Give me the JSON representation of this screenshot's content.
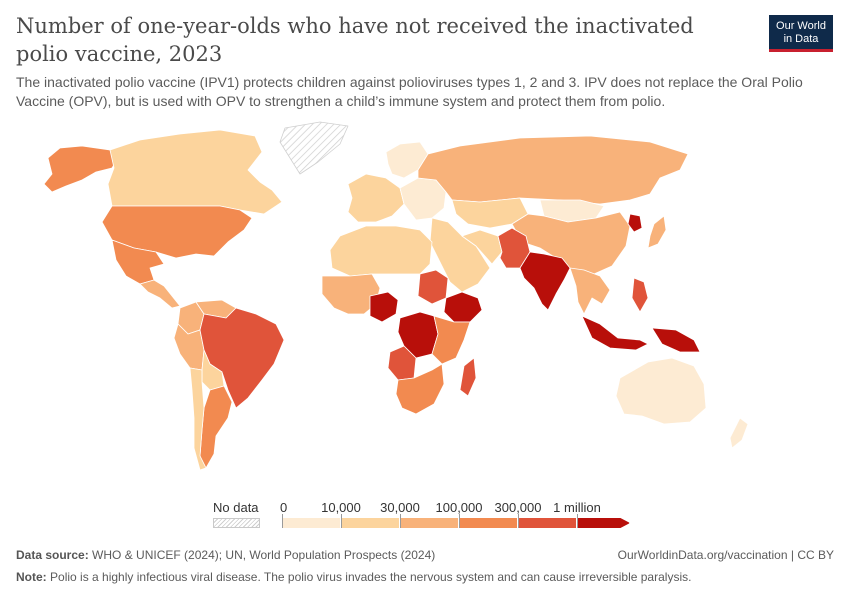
{
  "header": {
    "title": "Number of one-year-olds who have not received the inactivated polio vaccine, 2023",
    "subtitle": "The inactivated polio vaccine (IPV1) protects children against polioviruses types 1, 2 and 3. IPV does not replace the Oral Polio Vaccine (OPV), but is used with OPV to strengthen a child’s immune system and protect them from polio.",
    "logo_line1": "Our World",
    "logo_line2": "in Data"
  },
  "legend": {
    "nodata_label": "No data",
    "tick_labels": [
      "0",
      "10,000",
      "30,000",
      "100,000",
      "300,000",
      "1 million"
    ],
    "bin_colors": [
      "#fdebd3",
      "#fcd49d",
      "#f8b27a",
      "#f28a50",
      "#e0543a",
      "#b80f0a"
    ]
  },
  "footer": {
    "source_label": "Data source:",
    "source_text": "WHO & UNICEF (2024); UN, World Population Prospects (2024)",
    "credit": "OurWorldinData.org/vaccination | CC BY",
    "note_label": "Note:",
    "note_text": "Polio is a highly infectious viral disease. The polio virus invades the nervous system and can cause irreversible paralysis."
  },
  "map": {
    "regions": [
      {
        "name": "alaska",
        "bin": 3
      },
      {
        "name": "canada",
        "bin": 1
      },
      {
        "name": "greenland",
        "bin": -1
      },
      {
        "name": "usa",
        "bin": 3
      },
      {
        "name": "mexico",
        "bin": 3
      },
      {
        "name": "central-america",
        "bin": 2
      },
      {
        "name": "colombia",
        "bin": 2
      },
      {
        "name": "venezuela",
        "bin": 2
      },
      {
        "name": "peru",
        "bin": 2
      },
      {
        "name": "brazil",
        "bin": 4
      },
      {
        "name": "bolivia",
        "bin": 1
      },
      {
        "name": "argentina",
        "bin": 3
      },
      {
        "name": "chile",
        "bin": 1
      },
      {
        "name": "scandinavia",
        "bin": 0
      },
      {
        "name": "western-europe",
        "bin": 1
      },
      {
        "name": "eastern-europe",
        "bin": 0
      },
      {
        "name": "russia",
        "bin": 2
      },
      {
        "name": "kazakhstan",
        "bin": 1
      },
      {
        "name": "mongolia",
        "bin": 0
      },
      {
        "name": "china",
        "bin": 2
      },
      {
        "name": "north-korea",
        "bin": 5
      },
      {
        "name": "japan",
        "bin": 2
      },
      {
        "name": "middle-east",
        "bin": 1
      },
      {
        "name": "iran",
        "bin": 1
      },
      {
        "name": "afghanistan-pakistan",
        "bin": 4
      },
      {
        "name": "india",
        "bin": 5
      },
      {
        "name": "southeast-asia",
        "bin": 2
      },
      {
        "name": "philippines",
        "bin": 4
      },
      {
        "name": "indonesia",
        "bin": 5
      },
      {
        "name": "papua",
        "bin": 5
      },
      {
        "name": "australia",
        "bin": 0
      },
      {
        "name": "new-zealand",
        "bin": 0
      },
      {
        "name": "north-africa",
        "bin": 1
      },
      {
        "name": "west-africa",
        "bin": 2
      },
      {
        "name": "nigeria",
        "bin": 5
      },
      {
        "name": "sudan",
        "bin": 4
      },
      {
        "name": "ethiopia",
        "bin": 5
      },
      {
        "name": "dr-congo",
        "bin": 5
      },
      {
        "name": "angola",
        "bin": 4
      },
      {
        "name": "east-africa",
        "bin": 3
      },
      {
        "name": "southern-africa",
        "bin": 3
      },
      {
        "name": "madagascar",
        "bin": 4
      }
    ]
  }
}
